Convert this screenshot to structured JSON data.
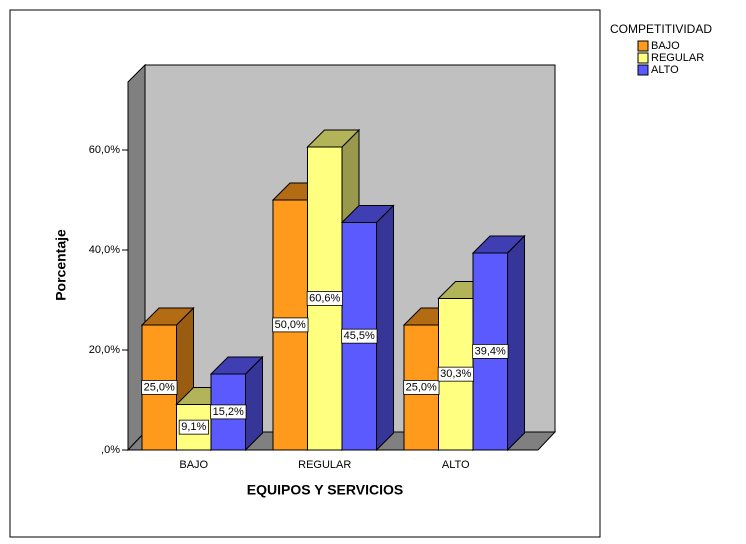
{
  "chart_data": {
    "type": "bar3d",
    "x_label": "EQUIPOS Y SERVICIOS",
    "y_label": "Porcentaje",
    "legend_title": "COMPETITIVIDAD",
    "categories": [
      "BAJO",
      "REGULAR",
      "ALTO"
    ],
    "series": [
      {
        "name": "BAJO",
        "color": "#ff9a1c",
        "values": [
          25.0,
          50.0,
          25.0
        ],
        "value_labels": [
          "25,0%",
          "50,0%",
          "25,0%"
        ]
      },
      {
        "name": "REGULAR",
        "color": "#ffff80",
        "values": [
          9.1,
          60.6,
          30.3
        ],
        "value_labels": [
          "9,1%",
          "60,6%",
          "30,3%"
        ]
      },
      {
        "name": "ALTO",
        "color": "#5a5aff",
        "values": [
          15.2,
          45.5,
          39.4
        ],
        "value_labels": [
          "15,2%",
          "45,5%",
          "39,4%"
        ]
      }
    ],
    "ylim": [
      0,
      74
    ],
    "yticks": [
      {
        "value": 0,
        "label": ",0%"
      },
      {
        "value": 20,
        "label": "20,0%"
      },
      {
        "value": 40,
        "label": "40,0%"
      },
      {
        "value": 60,
        "label": "60,0%"
      }
    ],
    "legend_position": "right"
  }
}
